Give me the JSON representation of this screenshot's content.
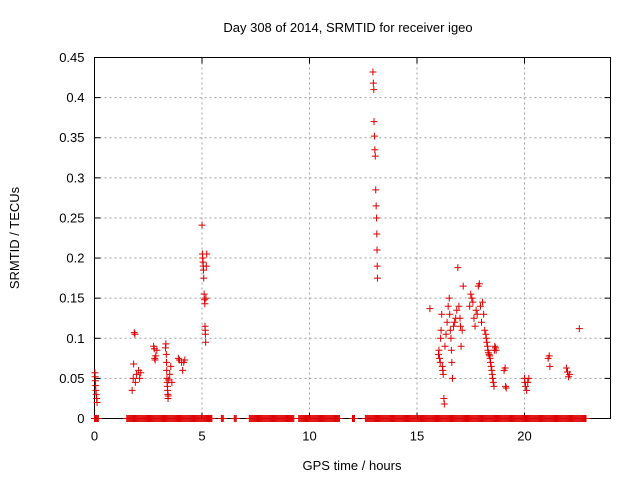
{
  "chart_data": {
    "type": "scatter",
    "title": "Day 308 of 2014, SRMTID for receiver igeo",
    "xlabel": "GPS time / hours",
    "ylabel": "SRMTID / TECUs",
    "xlim": [
      0,
      24
    ],
    "ylim": [
      0,
      0.45
    ],
    "xticks": [
      0,
      5,
      10,
      15,
      20
    ],
    "xtick_labels": [
      "0",
      "5",
      "10",
      "15",
      "20"
    ],
    "yticks": [
      0,
      0.05,
      0.1,
      0.15,
      0.2,
      0.25,
      0.3,
      0.35,
      0.4,
      0.45
    ],
    "ytick_labels": [
      "0",
      "0.05",
      "0.1",
      "0.15",
      "0.2",
      "0.25",
      "0.3",
      "0.35",
      "0.4",
      "0.45"
    ],
    "grid": true,
    "marker": "+",
    "series": [
      {
        "name": "SRMTID",
        "color": "#dd0000",
        "points": [
          [
            0.02,
            0.057
          ],
          [
            0.03,
            0.052
          ],
          [
            0.04,
            0.047
          ],
          [
            0.05,
            0.041
          ],
          [
            0.06,
            0.035
          ],
          [
            0.08,
            0.03
          ],
          [
            0.1,
            0.025
          ],
          [
            0.12,
            0.02
          ],
          [
            1.75,
            0.035
          ],
          [
            1.8,
            0.05
          ],
          [
            1.82,
            0.068
          ],
          [
            1.85,
            0.107
          ],
          [
            1.88,
            0.105
          ],
          [
            1.9,
            0.045
          ],
          [
            1.95,
            0.055
          ],
          [
            2.05,
            0.06
          ],
          [
            2.1,
            0.05
          ],
          [
            2.15,
            0.057
          ],
          [
            2.75,
            0.09
          ],
          [
            2.78,
            0.087
          ],
          [
            2.8,
            0.075
          ],
          [
            2.82,
            0.073
          ],
          [
            2.85,
            0.078
          ],
          [
            2.9,
            0.085
          ],
          [
            3.3,
            0.088
          ],
          [
            3.32,
            0.093
          ],
          [
            3.34,
            0.08
          ],
          [
            3.35,
            0.07
          ],
          [
            3.36,
            0.06
          ],
          [
            3.37,
            0.05
          ],
          [
            3.38,
            0.045
          ],
          [
            3.39,
            0.04
          ],
          [
            3.4,
            0.035
          ],
          [
            3.41,
            0.03
          ],
          [
            3.42,
            0.025
          ],
          [
            3.43,
            0.028
          ],
          [
            3.45,
            0.048
          ],
          [
            3.5,
            0.055
          ],
          [
            3.55,
            0.065
          ],
          [
            3.6,
            0.045
          ],
          [
            3.9,
            0.075
          ],
          [
            3.95,
            0.073
          ],
          [
            4.05,
            0.07
          ],
          [
            4.1,
            0.06
          ],
          [
            4.15,
            0.07
          ],
          [
            4.2,
            0.073
          ],
          [
            5.0,
            0.241
          ],
          [
            5.02,
            0.205
          ],
          [
            5.03,
            0.2
          ],
          [
            5.05,
            0.195
          ],
          [
            5.06,
            0.19
          ],
          [
            5.07,
            0.185
          ],
          [
            5.08,
            0.175
          ],
          [
            5.1,
            0.155
          ],
          [
            5.12,
            0.148
          ],
          [
            5.13,
            0.143
          ],
          [
            5.14,
            0.115
          ],
          [
            5.15,
            0.11
          ],
          [
            5.16,
            0.105
          ],
          [
            5.17,
            0.095
          ],
          [
            5.18,
            0.15
          ],
          [
            5.2,
            0.19
          ],
          [
            5.22,
            0.205
          ],
          [
            12.95,
            0.432
          ],
          [
            12.97,
            0.418
          ],
          [
            12.99,
            0.41
          ],
          [
            13.0,
            0.37
          ],
          [
            13.02,
            0.352
          ],
          [
            13.04,
            0.335
          ],
          [
            13.06,
            0.327
          ],
          [
            13.08,
            0.285
          ],
          [
            13.1,
            0.265
          ],
          [
            13.12,
            0.25
          ],
          [
            13.13,
            0.23
          ],
          [
            13.14,
            0.21
          ],
          [
            13.15,
            0.19
          ],
          [
            13.16,
            0.175
          ],
          [
            15.6,
            0.137
          ],
          [
            16.0,
            0.08
          ],
          [
            16.02,
            0.085
          ],
          [
            16.05,
            0.075
          ],
          [
            16.08,
            0.07
          ],
          [
            16.1,
            0.1
          ],
          [
            16.12,
            0.11
          ],
          [
            16.15,
            0.13
          ],
          [
            16.18,
            0.065
          ],
          [
            16.2,
            0.06
          ],
          [
            16.22,
            0.055
          ],
          [
            16.25,
            0.025
          ],
          [
            16.27,
            0.018
          ],
          [
            16.3,
            0.09
          ],
          [
            16.35,
            0.105
          ],
          [
            16.4,
            0.12
          ],
          [
            16.45,
            0.14
          ],
          [
            16.5,
            0.15
          ],
          [
            16.52,
            0.13
          ],
          [
            16.55,
            0.11
          ],
          [
            16.58,
            0.1
          ],
          [
            16.6,
            0.085
          ],
          [
            16.62,
            0.07
          ],
          [
            16.65,
            0.05
          ],
          [
            16.7,
            0.115
          ],
          [
            16.75,
            0.12
          ],
          [
            16.8,
            0.125
          ],
          [
            16.85,
            0.135
          ],
          [
            16.9,
            0.188
          ],
          [
            16.95,
            0.14
          ],
          [
            17.0,
            0.125
          ],
          [
            17.02,
            0.115
          ],
          [
            17.05,
            0.09
          ],
          [
            17.1,
            0.11
          ],
          [
            17.15,
            0.165
          ],
          [
            17.45,
            0.14
          ],
          [
            17.5,
            0.155
          ],
          [
            17.55,
            0.15
          ],
          [
            17.6,
            0.145
          ],
          [
            17.65,
            0.125
          ],
          [
            17.7,
            0.115
          ],
          [
            17.75,
            0.135
          ],
          [
            17.8,
            0.13
          ],
          [
            17.85,
            0.165
          ],
          [
            17.9,
            0.168
          ],
          [
            17.95,
            0.14
          ],
          [
            18.0,
            0.12
          ],
          [
            18.05,
            0.145
          ],
          [
            18.1,
            0.13
          ],
          [
            18.15,
            0.11
          ],
          [
            18.2,
            0.105
          ],
          [
            18.22,
            0.1
          ],
          [
            18.25,
            0.095
          ],
          [
            18.28,
            0.09
          ],
          [
            18.3,
            0.085
          ],
          [
            18.32,
            0.082
          ],
          [
            18.35,
            0.08
          ],
          [
            18.38,
            0.078
          ],
          [
            18.4,
            0.075
          ],
          [
            18.42,
            0.07
          ],
          [
            18.45,
            0.065
          ],
          [
            18.48,
            0.06
          ],
          [
            18.5,
            0.055
          ],
          [
            18.52,
            0.05
          ],
          [
            18.55,
            0.045
          ],
          [
            18.58,
            0.04
          ],
          [
            18.6,
            0.085
          ],
          [
            18.62,
            0.09
          ],
          [
            18.65,
            0.088
          ],
          [
            18.68,
            0.085
          ],
          [
            19.05,
            0.06
          ],
          [
            19.1,
            0.063
          ],
          [
            19.12,
            0.04
          ],
          [
            19.15,
            0.038
          ],
          [
            20.0,
            0.05
          ],
          [
            20.02,
            0.045
          ],
          [
            20.05,
            0.04
          ],
          [
            20.1,
            0.035
          ],
          [
            20.15,
            0.045
          ],
          [
            20.2,
            0.05
          ],
          [
            21.1,
            0.075
          ],
          [
            21.15,
            0.078
          ],
          [
            21.18,
            0.065
          ],
          [
            21.95,
            0.063
          ],
          [
            22.0,
            0.058
          ],
          [
            22.05,
            0.052
          ],
          [
            22.1,
            0.055
          ],
          [
            22.55,
            0.112
          ]
        ]
      }
    ],
    "zero_segments": [
      [
        0.0,
        0.2
      ],
      [
        1.5,
        5.5
      ],
      [
        5.9,
        6.0
      ],
      [
        6.5,
        6.6
      ],
      [
        7.2,
        9.3
      ],
      [
        9.5,
        11.4
      ],
      [
        12.0,
        12.1
      ],
      [
        12.6,
        22.9
      ]
    ]
  }
}
